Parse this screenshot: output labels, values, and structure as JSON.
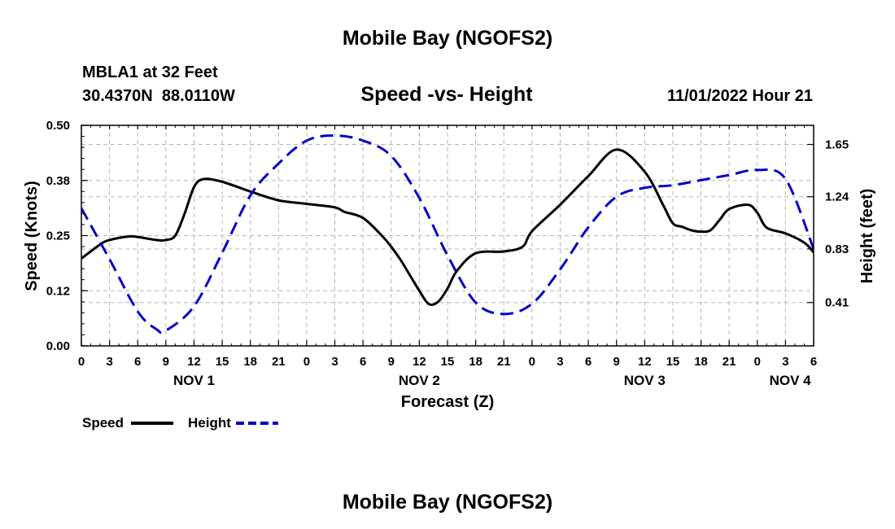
{
  "page": {
    "title_top": "Mobile Bay (NGOFS2)",
    "title_bottom": "Mobile Bay (NGOFS2)",
    "station_line": "MBLA1 at 32 Feet",
    "coords_line": "30.4370N  88.0110W",
    "timestamp": "11/01/2022 Hour 21"
  },
  "colors": {
    "speed": "#000000",
    "height": "#0000cc",
    "grid": "#b4b4b4"
  },
  "chart_data": {
    "type": "line",
    "title": "Speed -vs- Height",
    "xlabel": "Forecast (Z)",
    "ylabel_left": "Speed (Knots)",
    "ylabel_right": "Height (feet)",
    "x_unit": "forecast hours from NOV 1 00Z",
    "xlim": [
      0,
      78
    ],
    "ylim_left": [
      0,
      0.5
    ],
    "ylim_right": [
      0.07,
      1.8
    ],
    "x_ticks": [
      0,
      3,
      6,
      9,
      12,
      15,
      18,
      21,
      24,
      27,
      30,
      33,
      36,
      39,
      42,
      45,
      48,
      51,
      54,
      57,
      60,
      63,
      66,
      69,
      72,
      75,
      78
    ],
    "x_tick_labels": [
      "0",
      "3",
      "6",
      "9",
      "12",
      "15",
      "18",
      "21",
      "0",
      "3",
      "6",
      "9",
      "12",
      "15",
      "18",
      "21",
      "0",
      "3",
      "6",
      "9",
      "12",
      "15",
      "18",
      "21",
      "0",
      "3",
      "6"
    ],
    "y_ticks_left": [
      0,
      0.125,
      0.25,
      0.375,
      0.5
    ],
    "y_tick_labels_left": [
      "0.00",
      "0.12",
      "0.25",
      "0.38",
      "0.50"
    ],
    "y_ticks_right": [
      0.41,
      0.83,
      1.24,
      1.65
    ],
    "y_tick_labels_right": [
      "0.41",
      "0.83",
      "1.24",
      "1.65"
    ],
    "day_labels": [
      {
        "label": "NOV 1",
        "x": 12
      },
      {
        "label": "NOV 2",
        "x": 36
      },
      {
        "label": "NOV 3",
        "x": 60
      },
      {
        "label": "NOV 4",
        "x": 75.5
      }
    ],
    "grid": true,
    "legend_position": "bottom-left",
    "series": [
      {
        "name": "Speed",
        "axis": "left",
        "style": "solid",
        "x": [
          0,
          2,
          3,
          5,
          6,
          8,
          9,
          10,
          11,
          12,
          13,
          15,
          18,
          21,
          24,
          27,
          28,
          30,
          32,
          33,
          34,
          35,
          36,
          37,
          38,
          39,
          40,
          42,
          45,
          47,
          48,
          51,
          54,
          57,
          60,
          62,
          63,
          64,
          65,
          66,
          67,
          68,
          69,
          71,
          72,
          73,
          75,
          77,
          78
        ],
        "y": [
          0.198,
          0.23,
          0.24,
          0.248,
          0.247,
          0.24,
          0.24,
          0.25,
          0.3,
          0.36,
          0.378,
          0.372,
          0.35,
          0.33,
          0.322,
          0.314,
          0.304,
          0.29,
          0.25,
          0.225,
          0.195,
          0.16,
          0.125,
          0.095,
          0.1,
          0.13,
          0.17,
          0.21,
          0.214,
          0.225,
          0.26,
          0.32,
          0.385,
          0.445,
          0.395,
          0.318,
          0.278,
          0.27,
          0.262,
          0.259,
          0.262,
          0.286,
          0.31,
          0.32,
          0.302,
          0.268,
          0.255,
          0.234,
          0.212
        ]
      },
      {
        "name": "Height",
        "axis": "right",
        "style": "dashed",
        "x": [
          0,
          3,
          6,
          8,
          9,
          12,
          15,
          18,
          21,
          24,
          27,
          30,
          33,
          36,
          39,
          42,
          45,
          48,
          51,
          54,
          57,
          60,
          63,
          66,
          69,
          72,
          75,
          78
        ],
        "y": [
          1.15,
          0.75,
          0.34,
          0.2,
          0.19,
          0.38,
          0.8,
          1.25,
          1.5,
          1.68,
          1.72,
          1.68,
          1.56,
          1.23,
          0.78,
          0.41,
          0.32,
          0.4,
          0.67,
          1.0,
          1.24,
          1.31,
          1.33,
          1.37,
          1.41,
          1.45,
          1.38,
          0.83
        ]
      }
    ],
    "legend": [
      {
        "name": "Speed",
        "style": "solid"
      },
      {
        "name": "Height",
        "style": "dashed"
      }
    ]
  }
}
